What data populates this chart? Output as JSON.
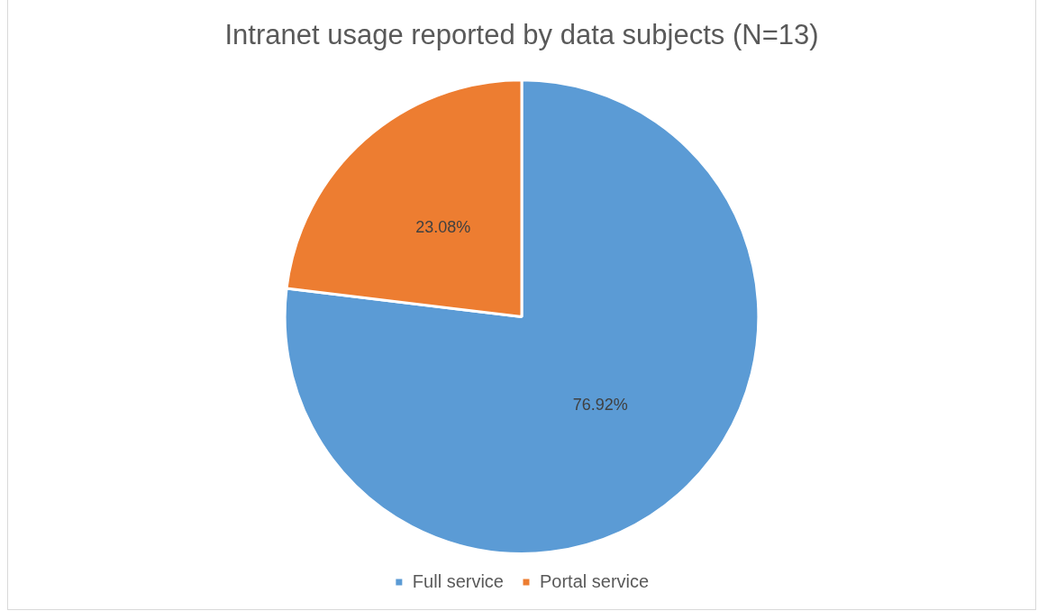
{
  "chart_data": {
    "type": "pie",
    "title": "Intranet usage reported by data subjects (N=13)",
    "categories": [
      "Full service",
      "Portal service"
    ],
    "values": [
      76.92,
      23.08
    ],
    "colors": [
      "#5b9bd5",
      "#ed7d31"
    ],
    "value_labels": [
      "76.92%",
      "23.08%"
    ],
    "legend": "bottom"
  }
}
